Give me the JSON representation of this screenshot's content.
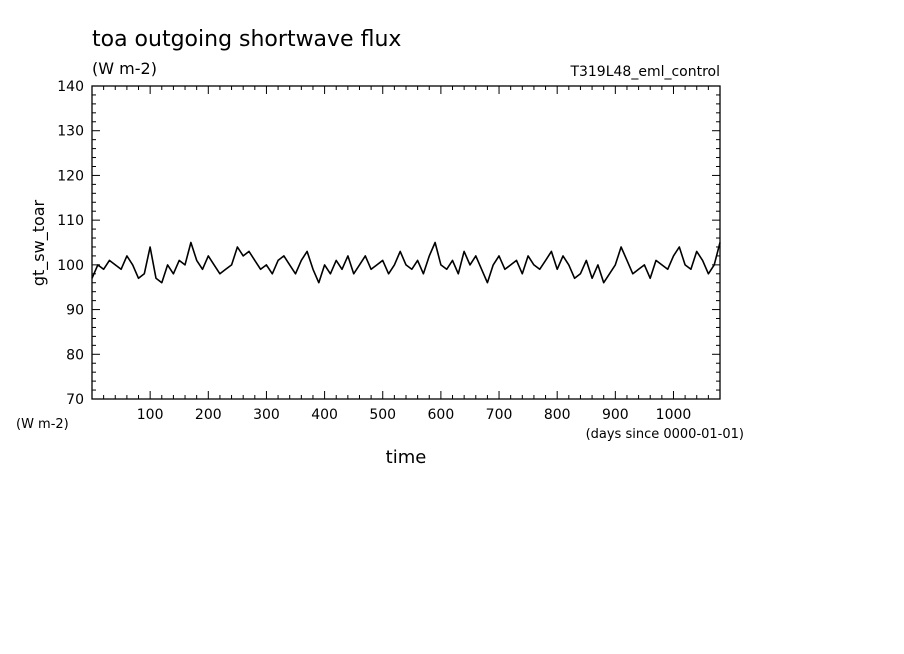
{
  "chart_data": {
    "type": "line",
    "title": "toa outgoing shortwave flux",
    "subtitle": "(W m-2)",
    "run_label": "T319L48_eml_control",
    "ylabel": "gt_sw_toar",
    "yunit_label": "(W m-2)",
    "xlabel": "time",
    "xunit_label": "(days since 0000-01-01)",
    "xlim": [
      0,
      1080
    ],
    "ylim": [
      70,
      140
    ],
    "xticks": [
      100,
      200,
      300,
      400,
      500,
      600,
      700,
      800,
      900,
      1000
    ],
    "yticks": [
      70,
      80,
      90,
      100,
      110,
      120,
      130,
      140
    ],
    "grid": false,
    "series": [
      {
        "color": "#000000",
        "x": [
          0,
          10,
          20,
          30,
          40,
          50,
          60,
          70,
          80,
          90,
          100,
          110,
          120,
          130,
          140,
          150,
          160,
          170,
          180,
          190,
          200,
          210,
          220,
          230,
          240,
          250,
          260,
          270,
          280,
          290,
          300,
          310,
          320,
          330,
          340,
          350,
          360,
          370,
          380,
          390,
          400,
          410,
          420,
          430,
          440,
          450,
          460,
          470,
          480,
          490,
          500,
          510,
          520,
          530,
          540,
          550,
          560,
          570,
          580,
          590,
          600,
          610,
          620,
          630,
          640,
          650,
          660,
          670,
          680,
          690,
          700,
          710,
          720,
          730,
          740,
          750,
          760,
          770,
          780,
          790,
          800,
          810,
          820,
          830,
          840,
          850,
          860,
          870,
          880,
          890,
          900,
          910,
          920,
          930,
          940,
          950,
          960,
          970,
          980,
          990,
          1000,
          1010,
          1020,
          1030,
          1040,
          1050,
          1060,
          1070,
          1080
        ],
        "y": [
          97,
          100,
          99,
          101,
          100,
          99,
          102,
          100,
          97,
          98,
          104,
          97,
          96,
          100,
          98,
          101,
          100,
          105,
          101,
          99,
          102,
          100,
          98,
          99,
          100,
          104,
          102,
          103,
          101,
          99,
          100,
          98,
          101,
          102,
          100,
          98,
          101,
          103,
          99,
          96,
          100,
          98,
          101,
          99,
          102,
          98,
          100,
          102,
          99,
          100,
          101,
          98,
          100,
          103,
          100,
          99,
          101,
          98,
          102,
          105,
          100,
          99,
          101,
          98,
          103,
          100,
          102,
          99,
          96,
          100,
          102,
          99,
          100,
          101,
          98,
          102,
          100,
          99,
          101,
          103,
          99,
          102,
          100,
          97,
          98,
          101,
          97,
          100,
          96,
          98,
          100,
          104,
          101,
          98,
          99,
          100,
          97,
          101,
          100,
          99,
          102,
          104,
          100,
          99,
          103,
          101,
          98,
          100,
          105
        ]
      }
    ]
  }
}
